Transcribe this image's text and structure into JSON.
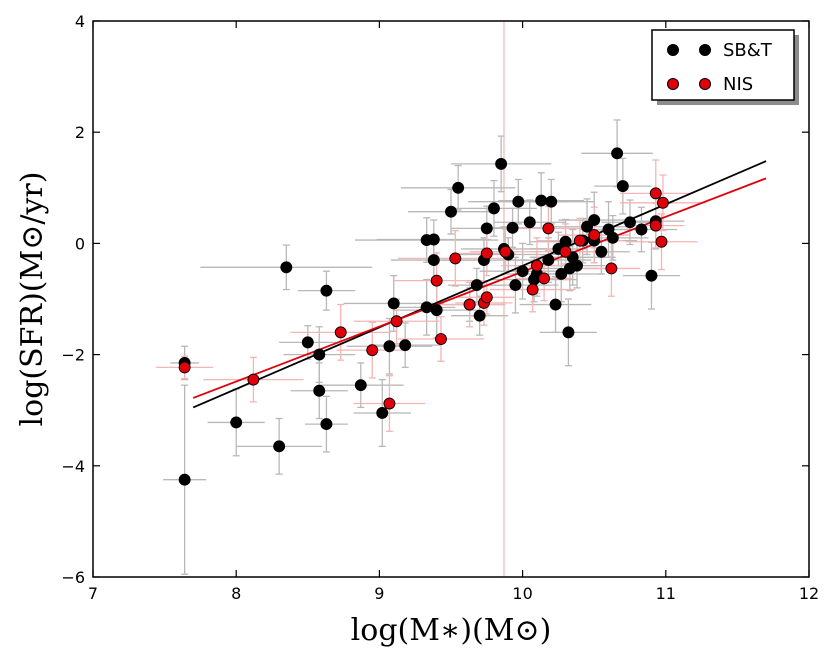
{
  "chart_data": {
    "type": "scatter",
    "xlabel": "log(M∗)(M⊙)",
    "ylabel": "log(SFR)(M⊙/yr)",
    "xlim": [
      7,
      12
    ],
    "ylim": [
      -6,
      4
    ],
    "xticks": [
      7,
      8,
      9,
      10,
      11,
      12
    ],
    "yticks": [
      -6,
      -4,
      -2,
      0,
      2,
      4
    ],
    "xtick_labels": [
      "7",
      "8",
      "9",
      "10",
      "11",
      "12"
    ],
    "ytick_labels": [
      "−6",
      "−4",
      "−2",
      "0",
      "2",
      "4"
    ],
    "legend_position": "top-right",
    "vertical_line": {
      "x": 9.87,
      "color": "#f4b5b5"
    },
    "series": [
      {
        "name": "SB&T",
        "color": "#000000",
        "error_color": "#b8b8b8",
        "fit": {
          "x": [
            7.7,
            11.7
          ],
          "y": [
            -2.95,
            1.48
          ]
        },
        "points": [
          [
            7.64,
            -2.15,
            0.1,
            0.3
          ],
          [
            7.64,
            -4.25,
            0.15,
            1.7
          ],
          [
            8.0,
            -3.22,
            0.2,
            0.6
          ],
          [
            8.35,
            -0.43,
            0.6,
            0.4
          ],
          [
            8.3,
            -3.65,
            0.3,
            0.5
          ],
          [
            8.5,
            -1.78,
            0.2,
            0.3
          ],
          [
            8.58,
            -2.0,
            0.25,
            0.5
          ],
          [
            8.58,
            -2.65,
            0.2,
            0.5
          ],
          [
            8.63,
            -0.85,
            0.2,
            0.35
          ],
          [
            8.63,
            -3.25,
            0.15,
            0.5
          ],
          [
            8.87,
            -2.55,
            0.3,
            0.4
          ],
          [
            9.02,
            -3.05,
            0.2,
            0.6
          ],
          [
            9.07,
            -1.85,
            0.3,
            0.5
          ],
          [
            9.1,
            -1.08,
            0.35,
            0.5
          ],
          [
            9.18,
            -1.83,
            0.25,
            0.4
          ],
          [
            9.33,
            0.06,
            0.5,
            0.4
          ],
          [
            9.33,
            -1.15,
            0.2,
            0.5
          ],
          [
            9.38,
            0.07,
            0.4,
            0.35
          ],
          [
            9.38,
            -0.3,
            0.3,
            0.4
          ],
          [
            9.4,
            -1.2,
            0.3,
            0.5
          ],
          [
            9.5,
            0.57,
            0.3,
            0.4
          ],
          [
            9.55,
            1.0,
            0.4,
            0.4
          ],
          [
            9.63,
            -1.1,
            0.25,
            0.3
          ],
          [
            9.68,
            -0.75,
            0.2,
            0.3
          ],
          [
            9.7,
            -1.3,
            0.2,
            0.35
          ],
          [
            9.73,
            -0.3,
            0.3,
            0.4
          ],
          [
            9.75,
            0.27,
            0.25,
            0.4
          ],
          [
            9.8,
            0.63,
            0.3,
            0.5
          ],
          [
            9.85,
            1.43,
            0.35,
            0.5
          ],
          [
            9.87,
            -0.1,
            0.3,
            0.4
          ],
          [
            9.9,
            -0.2,
            0.4,
            0.3
          ],
          [
            9.93,
            0.28,
            0.2,
            0.35
          ],
          [
            9.95,
            -0.75,
            0.3,
            0.5
          ],
          [
            9.97,
            0.75,
            0.35,
            0.4
          ],
          [
            10.0,
            -0.5,
            0.3,
            0.5
          ],
          [
            10.05,
            0.38,
            0.25,
            0.4
          ],
          [
            10.08,
            -0.65,
            0.3,
            0.4
          ],
          [
            10.1,
            -0.55,
            0.25,
            0.4
          ],
          [
            10.13,
            0.77,
            0.3,
            0.5
          ],
          [
            10.18,
            -0.3,
            0.3,
            0.4
          ],
          [
            10.2,
            0.75,
            0.3,
            0.4
          ],
          [
            10.23,
            -1.1,
            0.25,
            0.5
          ],
          [
            10.25,
            -0.1,
            0.2,
            0.3
          ],
          [
            10.27,
            -0.55,
            0.3,
            0.5
          ],
          [
            10.3,
            0.03,
            0.25,
            0.4
          ],
          [
            10.32,
            -1.6,
            0.2,
            0.6
          ],
          [
            10.33,
            -0.45,
            0.2,
            0.4
          ],
          [
            10.35,
            -0.25,
            0.3,
            0.5
          ],
          [
            10.38,
            -0.4,
            0.2,
            0.4
          ],
          [
            10.42,
            0.05,
            0.2,
            0.4
          ],
          [
            10.45,
            0.3,
            0.3,
            0.5
          ],
          [
            10.5,
            0.42,
            0.25,
            0.5
          ],
          [
            10.5,
            0.05,
            0.3,
            0.4
          ],
          [
            10.55,
            -0.15,
            0.2,
            0.4
          ],
          [
            10.6,
            0.25,
            0.2,
            0.5
          ],
          [
            10.63,
            0.1,
            0.25,
            0.4
          ],
          [
            10.66,
            1.62,
            0.25,
            0.6
          ],
          [
            10.7,
            1.03,
            0.2,
            0.5
          ],
          [
            10.75,
            0.38,
            0.2,
            0.4
          ],
          [
            10.83,
            0.25,
            0.25,
            0.4
          ],
          [
            10.9,
            -0.58,
            0.2,
            0.6
          ],
          [
            10.93,
            0.4,
            0.2,
            0.5
          ]
        ]
      },
      {
        "name": "NIS",
        "color": "#e0000a",
        "error_color": "#f4b5b5",
        "fit": {
          "x": [
            7.7,
            11.7
          ],
          "y": [
            -2.78,
            1.17
          ]
        },
        "points": [
          [
            7.64,
            -2.23,
            0.2,
            0.2
          ],
          [
            8.12,
            -2.45,
            0.35,
            0.4
          ],
          [
            8.73,
            -1.6,
            0.35,
            0.5
          ],
          [
            8.95,
            -1.92,
            0.25,
            0.5
          ],
          [
            9.07,
            -2.88,
            0.25,
            0.5
          ],
          [
            9.12,
            -1.4,
            0.3,
            0.4
          ],
          [
            9.4,
            -0.67,
            0.3,
            0.5
          ],
          [
            9.43,
            -1.72,
            0.3,
            0.4
          ],
          [
            9.53,
            -0.27,
            0.4,
            0.5
          ],
          [
            9.63,
            -1.1,
            0.25,
            0.4
          ],
          [
            9.73,
            -1.07,
            0.2,
            0.4
          ],
          [
            9.75,
            -0.97,
            0.2,
            0.3
          ],
          [
            9.75,
            -0.18,
            0.2,
            0.4
          ],
          [
            9.88,
            -0.15,
            0.25,
            0.4
          ],
          [
            10.07,
            -0.83,
            0.3,
            0.4
          ],
          [
            10.1,
            -0.4,
            0.25,
            0.5
          ],
          [
            10.15,
            -0.63,
            0.2,
            0.4
          ],
          [
            10.18,
            0.27,
            0.3,
            0.4
          ],
          [
            10.3,
            -0.15,
            0.25,
            0.5
          ],
          [
            10.4,
            0.05,
            0.3,
            0.4
          ],
          [
            10.5,
            0.15,
            0.25,
            0.5
          ],
          [
            10.62,
            -0.45,
            0.2,
            0.5
          ],
          [
            10.93,
            0.9,
            0.25,
            0.6
          ],
          [
            10.93,
            0.32,
            0.2,
            0.4
          ],
          [
            10.97,
            0.03,
            0.25,
            0.5
          ],
          [
            10.98,
            0.73,
            0.3,
            0.5
          ]
        ]
      }
    ]
  }
}
